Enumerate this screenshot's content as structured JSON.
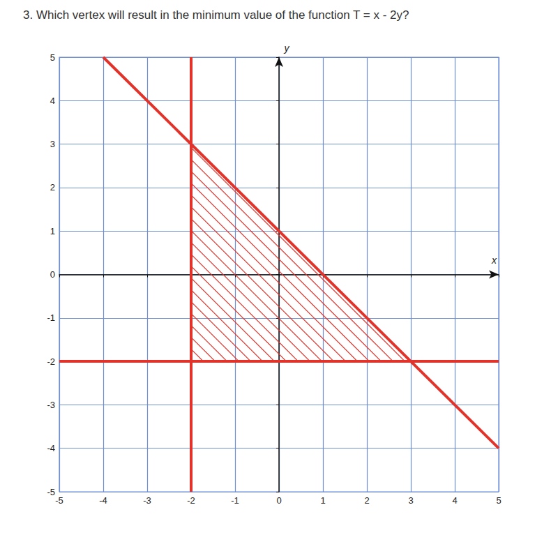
{
  "chart_data": {
    "type": "line",
    "title": "3. Which vertex will result in the minimum value of the function T = x - 2y?",
    "x_label": "x",
    "y_label": "y",
    "xlim": [
      -5,
      5
    ],
    "ylim": [
      -5,
      5
    ],
    "xticks": [
      -5,
      -4,
      -3,
      -2,
      -1,
      0,
      1,
      2,
      3,
      4,
      5
    ],
    "yticks": [
      -5,
      -4,
      -3,
      -2,
      -1,
      0,
      1,
      2,
      3,
      4,
      5
    ],
    "grid": true,
    "series": [
      {
        "type": "line",
        "x": [
          -2,
          -2
        ],
        "values": [
          5,
          -5
        ],
        "color": "#e2332b",
        "line_style": "solid"
      },
      {
        "type": "line",
        "x": [
          -5,
          5
        ],
        "values": [
          -2,
          -2
        ],
        "color": "#e2332b",
        "line_style": "solid"
      },
      {
        "type": "line",
        "x": [
          -4,
          5
        ],
        "values": [
          5,
          -4
        ],
        "color": "#e2332b",
        "line_style": "solid"
      },
      {
        "type": "polygon",
        "x": [
          -2,
          -2,
          3
        ],
        "values": [
          3,
          -2,
          -2
        ],
        "color": "#e2332b",
        "line_style": "hatched"
      }
    ]
  }
}
